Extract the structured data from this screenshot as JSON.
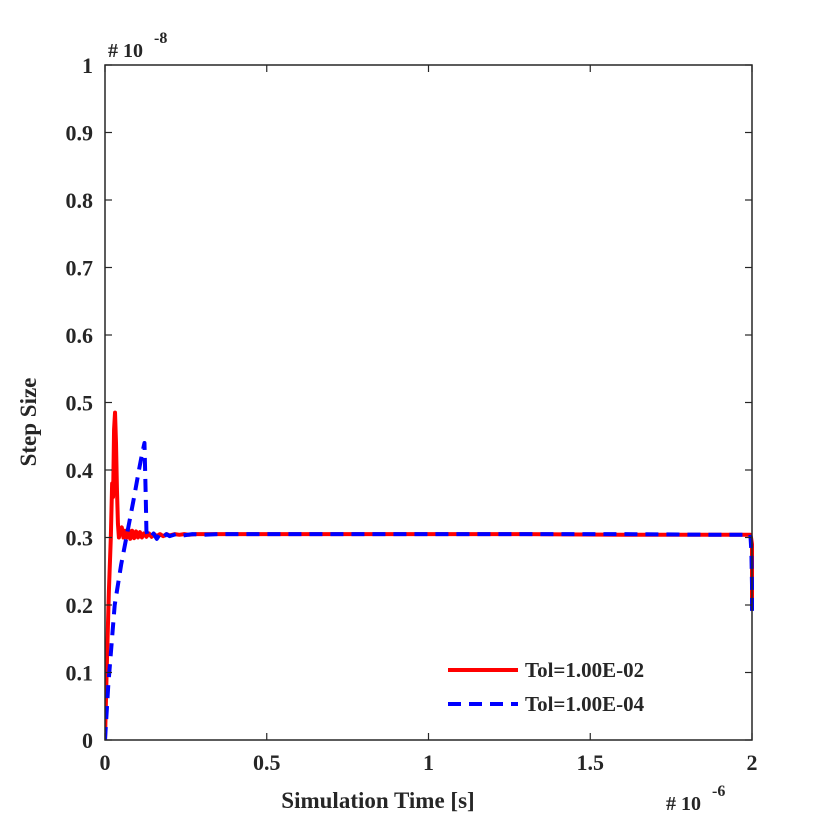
{
  "chart_data": {
    "type": "line",
    "title": "",
    "xlabel": "Simulation Time [s]",
    "ylabel": "Step Size",
    "x_exponent": {
      "prefix": "# 10",
      "power": "-6"
    },
    "y_exponent": {
      "prefix": "# 10",
      "power": "-8"
    },
    "xlim": [
      0,
      2
    ],
    "ylim": [
      0,
      1
    ],
    "x_ticks": [
      0,
      0.5,
      1,
      1.5,
      2
    ],
    "x_tick_labels": [
      "0",
      "0.5",
      "1",
      "1.5",
      "2"
    ],
    "y_ticks": [
      0,
      0.1,
      0.2,
      0.3,
      0.4,
      0.5,
      0.6,
      0.7,
      0.8,
      0.9,
      1
    ],
    "y_tick_labels": [
      "0",
      "0.1",
      "0.2",
      "0.3",
      "0.4",
      "0.5",
      "0.6",
      "0.7",
      "0.8",
      "0.9",
      "1"
    ],
    "grid": false,
    "legend_position": "bottom-right",
    "series": [
      {
        "name": "Tol=1.00E-02",
        "color": "#ff0000",
        "style": "solid",
        "x": [
          0,
          0.005,
          0.012,
          0.018,
          0.022,
          0.025,
          0.028,
          0.031,
          0.034,
          0.037,
          0.04,
          0.043,
          0.047,
          0.052,
          0.057,
          0.062,
          0.067,
          0.072,
          0.078,
          0.084,
          0.09,
          0.096,
          0.102,
          0.108,
          0.114,
          0.12,
          0.128,
          0.136,
          0.144,
          0.152,
          0.16,
          0.17,
          0.18,
          0.19,
          0.2,
          0.215,
          0.23,
          0.245,
          0.26,
          0.28,
          0.3,
          0.35,
          0.4,
          0.5,
          0.7,
          1.0,
          1.3,
          1.6,
          1.9,
          1.995,
          1.997,
          2.0,
          2.0
        ],
        "y": [
          0,
          0.1,
          0.22,
          0.3,
          0.38,
          0.36,
          0.46,
          0.485,
          0.44,
          0.37,
          0.32,
          0.3,
          0.31,
          0.315,
          0.3,
          0.31,
          0.3,
          0.312,
          0.298,
          0.31,
          0.299,
          0.309,
          0.3,
          0.308,
          0.3,
          0.306,
          0.301,
          0.306,
          0.301,
          0.305,
          0.302,
          0.305,
          0.302,
          0.305,
          0.303,
          0.305,
          0.304,
          0.305,
          0.304,
          0.305,
          0.305,
          0.305,
          0.305,
          0.305,
          0.305,
          0.305,
          0.305,
          0.304,
          0.304,
          0.304,
          0.3,
          0.29,
          0.2
        ]
      },
      {
        "name": "Tol=1.00E-04",
        "color": "#0000ff",
        "style": "dashed",
        "x": [
          0,
          0.01,
          0.03,
          0.05,
          0.07,
          0.09,
          0.105,
          0.115,
          0.122,
          0.126,
          0.128,
          0.132,
          0.14,
          0.15,
          0.16,
          0.17,
          0.18,
          0.19,
          0.2,
          0.22,
          0.24,
          0.27,
          0.3,
          0.35,
          0.4,
          0.5,
          0.7,
          1.0,
          1.3,
          1.6,
          1.9,
          1.995,
          1.998,
          2.0,
          2.0
        ],
        "y": [
          0,
          0.08,
          0.2,
          0.26,
          0.31,
          0.36,
          0.4,
          0.425,
          0.44,
          0.36,
          0.31,
          0.302,
          0.3,
          0.306,
          0.298,
          0.305,
          0.3,
          0.305,
          0.302,
          0.305,
          0.303,
          0.305,
          0.304,
          0.305,
          0.305,
          0.305,
          0.305,
          0.305,
          0.305,
          0.305,
          0.304,
          0.304,
          0.28,
          0.23,
          0.19
        ]
      }
    ]
  }
}
